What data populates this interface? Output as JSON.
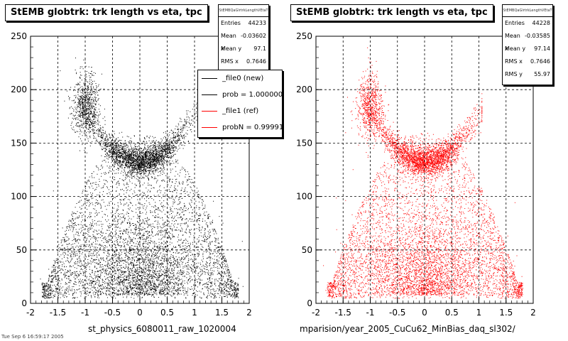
{
  "chart_data": [
    {
      "type": "scatter",
      "title": "StEMB globtrk: trk length vs eta, tpc",
      "xlabel": "st_physics_6080011_raw_1020004",
      "ylabel": "",
      "xlim": [
        -2,
        2
      ],
      "ylim": [
        0,
        250
      ],
      "xticks": [
        "-2",
        "-1.5",
        "-1",
        "-0.5",
        "0",
        "0.5",
        "1",
        "1.5",
        "2"
      ],
      "yticks": [
        "0",
        "50",
        "100",
        "150",
        "200",
        "250"
      ],
      "grid": true,
      "color": "#000000",
      "stats": {
        "name": "StEMBQaGlrtrkLengthVEtaT",
        "rows": [
          {
            "label": "Entries",
            "value": "44233"
          },
          {
            "label": "Mean x",
            "value": "-0.03602"
          },
          {
            "label": "Mean y",
            "value": "97.1"
          },
          {
            "label": "RMS x",
            "value": "0.7646"
          }
        ]
      },
      "legend": {
        "placement": "top-right",
        "entries": [
          {
            "text": "_file0 (new)",
            "color": "#000000"
          },
          {
            "text": "prob = 1.000000",
            "color": "#000000"
          },
          {
            "text": "_file1 (ref)",
            "color": "#ff0000"
          },
          {
            "text": "probN = 0.999915",
            "color": "#ff0000"
          }
        ]
      }
    },
    {
      "type": "scatter",
      "title": "StEMB globtrk: trk length vs eta, tpc",
      "xlabel": "mparision/year_2005_CuCu62_MinBias_daq_sl302/",
      "ylabel": "",
      "xlim": [
        -2,
        2
      ],
      "ylim": [
        0,
        250
      ],
      "xticks": [
        "-2",
        "-1.5",
        "-1",
        "-0.5",
        "0",
        "0.5",
        "1",
        "1.5",
        "2"
      ],
      "yticks": [
        "0",
        "50",
        "100",
        "150",
        "200",
        "250"
      ],
      "grid": true,
      "color": "#ff0000",
      "stats": {
        "name": "StEMBQaGlrtrkLengthVEtaT",
        "rows": [
          {
            "label": "Entries",
            "value": "44228"
          },
          {
            "label": "Mean x",
            "value": "-0.03585"
          },
          {
            "label": "Mean y",
            "value": "97.14"
          },
          {
            "label": "RMS x",
            "value": "0.7646"
          },
          {
            "label": "RMS y",
            "value": "55.97"
          }
        ]
      }
    }
  ],
  "footer": "Tue Sep 6 16:59:17 2005"
}
